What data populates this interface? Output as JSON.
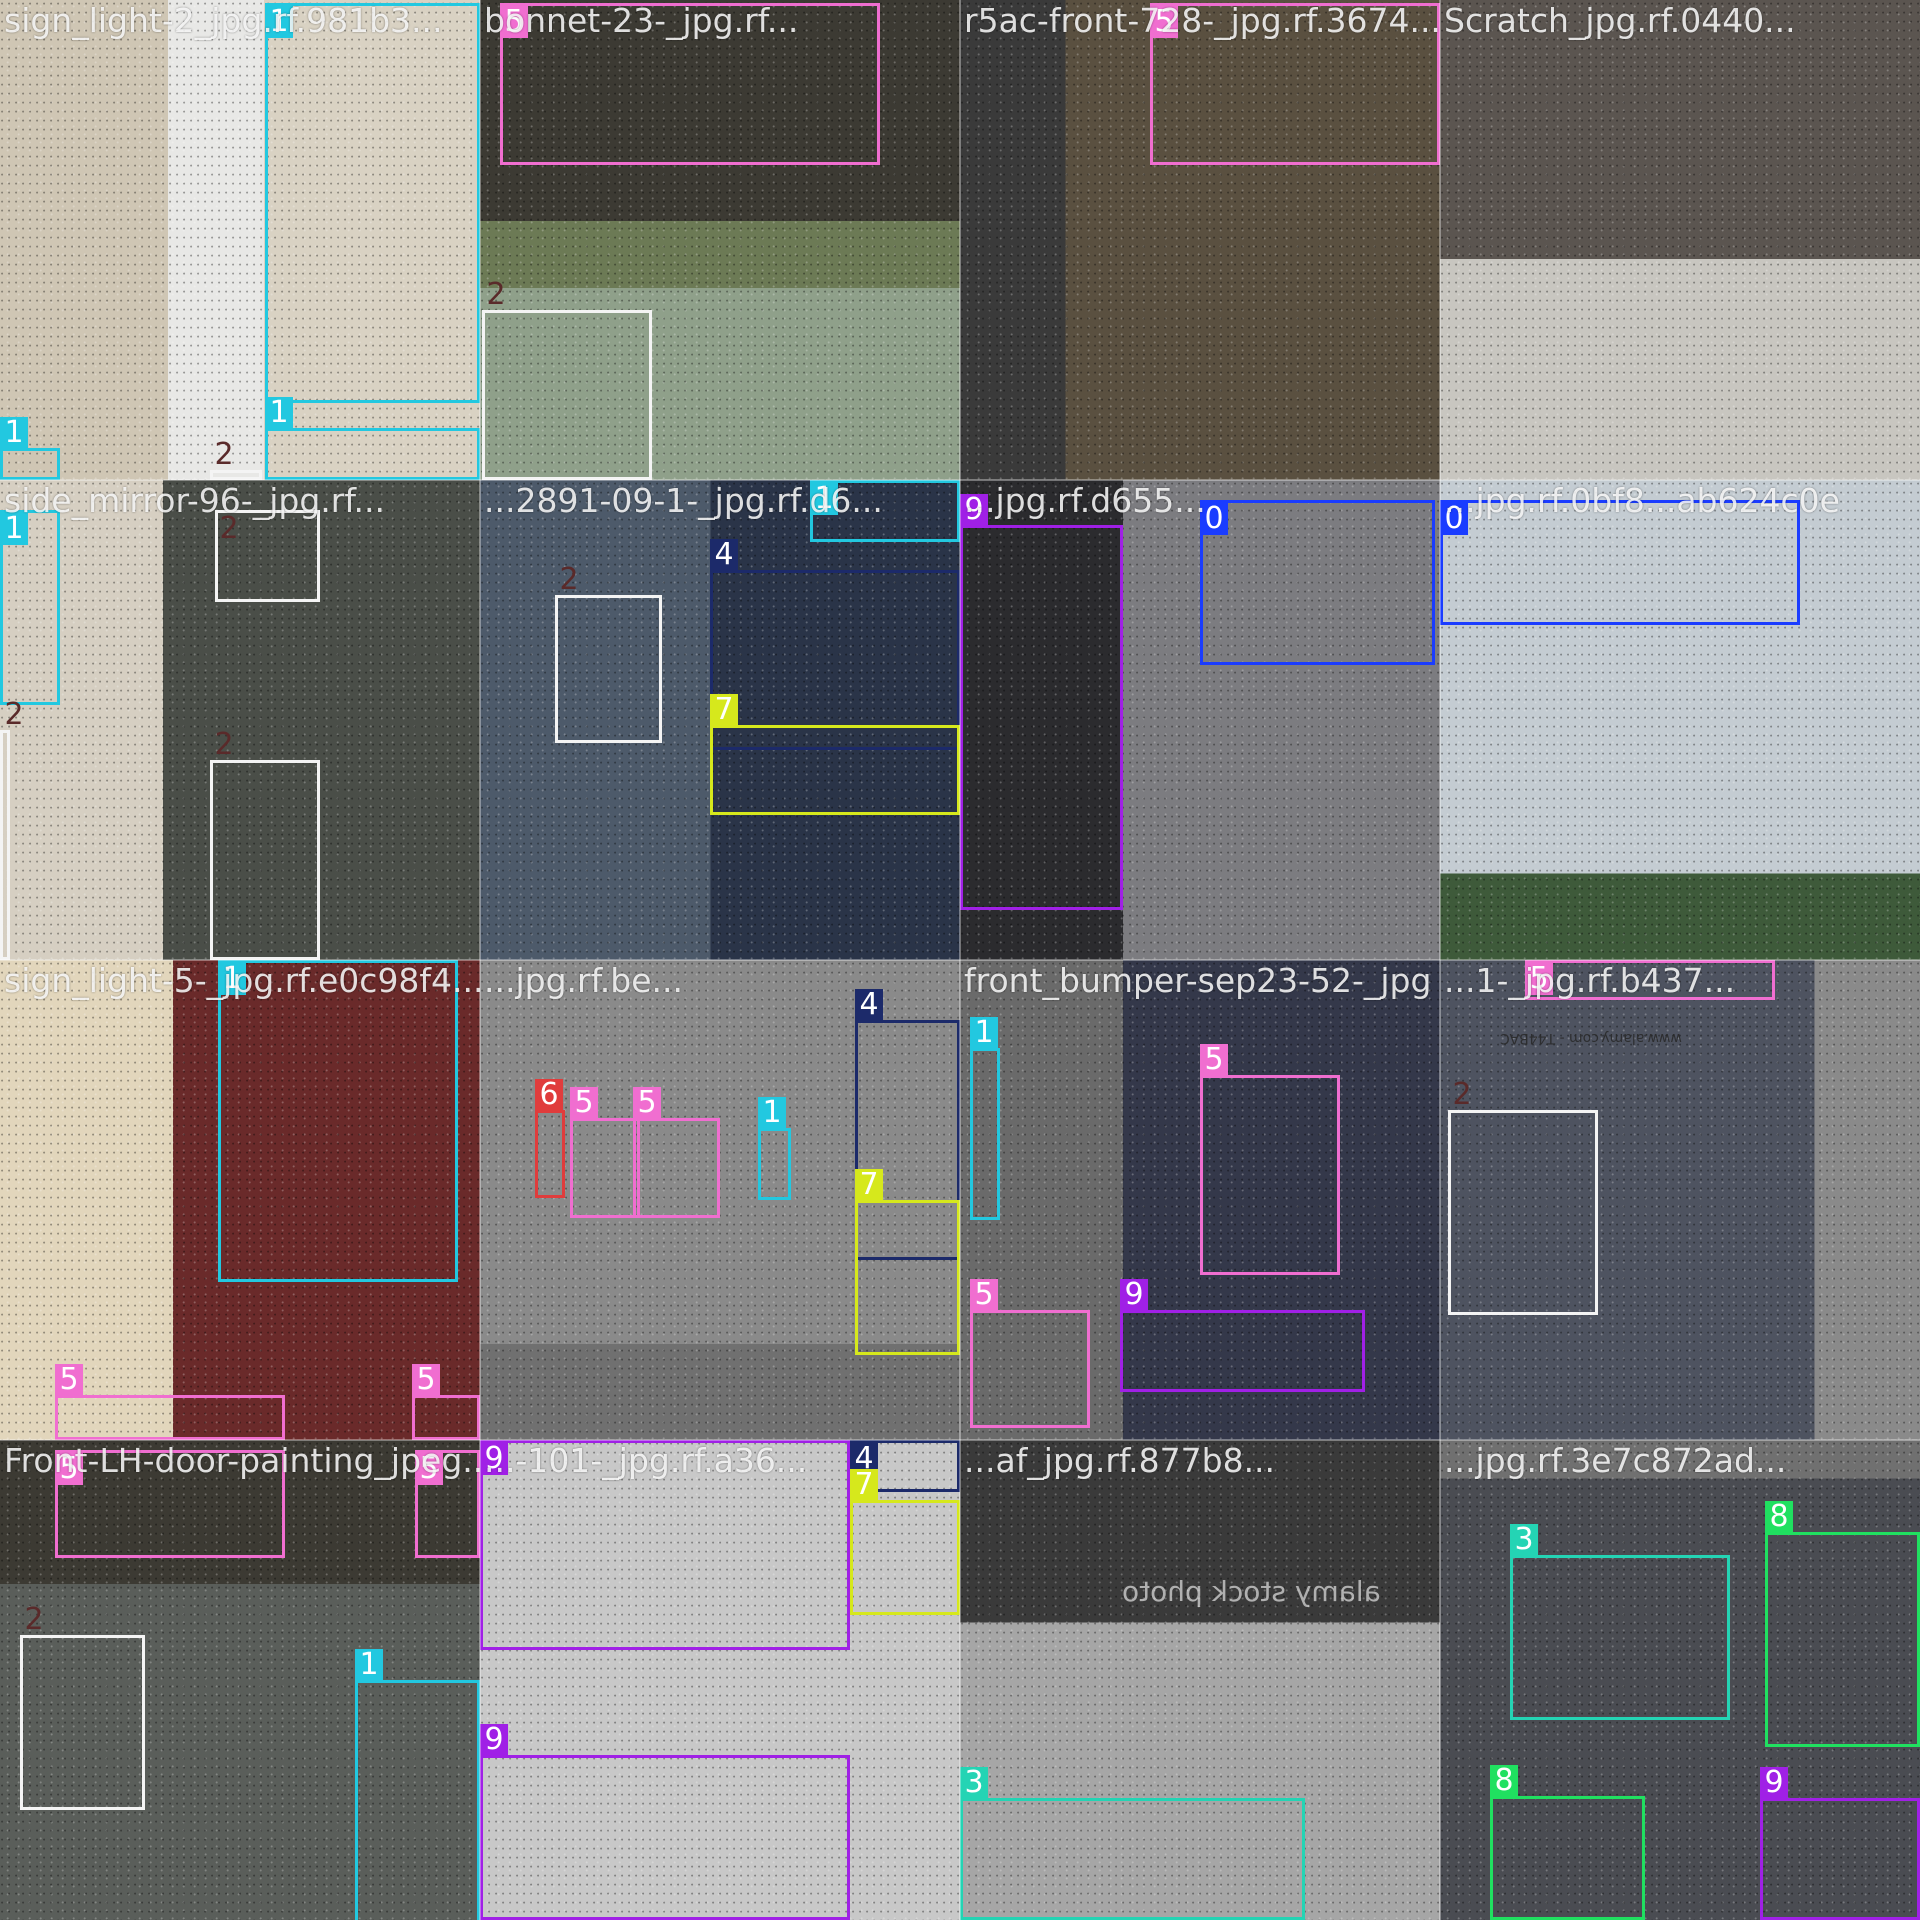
{
  "class_colors": {
    "0": "#1a3cff",
    "1": "#22c8e0",
    "2": "#f4f4f4",
    "3": "#24d4b4",
    "4": "#1c2a6a",
    "5": "#f06ed0",
    "6": "#e03c3c",
    "7": "#d6e81c",
    "8": "#20e060",
    "9": "#a020e6"
  },
  "tiles": [
    {
      "filename": "sign_light-2_jpg.rf.981b3...",
      "boxes": [
        {
          "cls": "1"
        },
        {
          "cls": "1"
        },
        {
          "cls": "1"
        },
        {
          "cls": "2"
        }
      ]
    },
    {
      "filename": "bonnet-23-_jpg.rf...",
      "boxes": [
        {
          "cls": "5"
        },
        {
          "cls": "2"
        }
      ]
    },
    {
      "filename": "r5ac-front-728-_jpg.rf.3674...",
      "boxes": [
        {
          "cls": "5"
        }
      ]
    },
    {
      "filename": "Scratch_jpg.rf.0440...",
      "boxes": []
    },
    {
      "filename": "side_mirror-96-_jpg.rf...",
      "boxes": [
        {
          "cls": "1"
        },
        {
          "cls": "2"
        },
        {
          "cls": "2"
        },
        {
          "cls": "2"
        }
      ]
    },
    {
      "filename": "...2891-09-1-_jpg.rf.d6...",
      "boxes": [
        {
          "cls": "1"
        },
        {
          "cls": "2"
        },
        {
          "cls": "4"
        },
        {
          "cls": "7"
        }
      ]
    },
    {
      "filename": "...jpg.rf.d655...",
      "boxes": [
        {
          "cls": "9"
        },
        {
          "cls": "0"
        }
      ]
    },
    {
      "filename": "...jpg.rf.0bf8...ab624c0e",
      "boxes": [
        {
          "cls": "0"
        }
      ]
    },
    {
      "filename": "sign_light-5-_jpg.rf.e0c98f4...",
      "boxes": [
        {
          "cls": "1"
        },
        {
          "cls": "5"
        },
        {
          "cls": "5"
        }
      ]
    },
    {
      "filename": "...jpg.rf.be...",
      "boxes": [
        {
          "cls": "4"
        },
        {
          "cls": "6"
        },
        {
          "cls": "5"
        },
        {
          "cls": "5"
        },
        {
          "cls": "1"
        },
        {
          "cls": "7"
        }
      ]
    },
    {
      "filename": "front_bumper-sep23-52-_jpg",
      "boxes": [
        {
          "cls": "1"
        },
        {
          "cls": "5"
        },
        {
          "cls": "5"
        },
        {
          "cls": "9"
        }
      ]
    },
    {
      "filename": "...1-_jpg.rf.b437...",
      "boxes": [
        {
          "cls": "5"
        },
        {
          "cls": "2"
        }
      ]
    },
    {
      "filename": "Front-LH-door-painting_jpeg...",
      "boxes": [
        {
          "cls": "5"
        },
        {
          "cls": "5"
        },
        {
          "cls": "2"
        },
        {
          "cls": "1"
        }
      ]
    },
    {
      "filename": "...-101-_jpg.rf.a36...",
      "boxes": [
        {
          "cls": "9"
        },
        {
          "cls": "4"
        },
        {
          "cls": "7"
        },
        {
          "cls": "9"
        }
      ]
    },
    {
      "filename": "...af_jpg.rf.877b8...",
      "boxes": [
        {
          "cls": "3"
        }
      ]
    },
    {
      "filename": "...jpg.rf.3e7c872ad...",
      "boxes": [
        {
          "cls": "3"
        },
        {
          "cls": "8"
        },
        {
          "cls": "8"
        },
        {
          "cls": "9"
        }
      ]
    }
  ],
  "watermark": "alamy stock photo",
  "watermark_url": "www.alamy.com - T44BAC"
}
